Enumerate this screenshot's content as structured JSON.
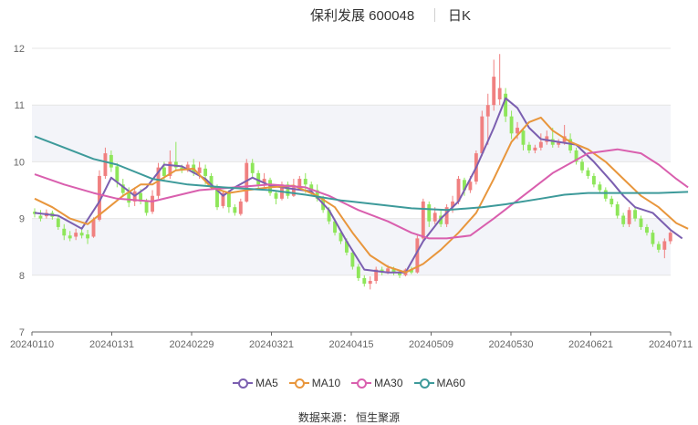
{
  "header": {
    "title": "保利发展 600048",
    "period": "日K"
  },
  "source": {
    "label": "数据来源：",
    "name": "恒生聚源"
  },
  "colors": {
    "up": "#f08080",
    "down": "#8ee65a",
    "band": "#f3f4f9",
    "grid": "#e6e6e6",
    "axis": "#666666"
  },
  "chart_data": {
    "type": "candlestick",
    "title": "保利发展 600048",
    "period": "日K",
    "ylim": [
      7,
      12
    ],
    "yticks": [
      7,
      8,
      9,
      10,
      11,
      12
    ],
    "x_ticks": [
      "20240110",
      "20240131",
      "20240229",
      "20240321",
      "20240415",
      "20240509",
      "20240530",
      "20240621",
      "20240711"
    ],
    "legend_position": "bottom",
    "candles": [
      [
        9.12,
        9.08,
        9.18,
        9.02
      ],
      [
        9.05,
        9.0,
        9.15,
        8.95
      ],
      [
        9.04,
        9.1,
        9.16,
        9.0
      ],
      [
        9.1,
        9.03,
        9.14,
        8.98
      ],
      [
        9.0,
        8.85,
        9.05,
        8.8
      ],
      [
        8.82,
        8.7,
        8.9,
        8.62
      ],
      [
        8.7,
        8.65,
        8.78,
        8.6
      ],
      [
        8.68,
        8.75,
        8.82,
        8.62
      ],
      [
        8.75,
        8.7,
        8.85,
        8.65
      ],
      [
        8.72,
        8.65,
        8.8,
        8.55
      ],
      [
        8.68,
        8.98,
        9.02,
        8.66
      ],
      [
        8.98,
        9.75,
        9.85,
        8.95
      ],
      [
        9.75,
        10.15,
        10.25,
        9.7
      ],
      [
        10.12,
        9.9,
        10.2,
        9.82
      ],
      [
        9.92,
        9.65,
        9.98,
        9.55
      ],
      [
        9.6,
        9.45,
        9.7,
        9.38
      ],
      [
        9.45,
        9.28,
        9.55,
        9.2
      ],
      [
        9.3,
        9.48,
        9.55,
        9.22
      ],
      [
        9.45,
        9.3,
        9.52,
        9.25
      ],
      [
        9.3,
        9.1,
        9.35,
        9.05
      ],
      [
        9.12,
        9.4,
        9.5,
        9.08
      ],
      [
        9.4,
        9.9,
        9.98,
        9.35
      ],
      [
        9.9,
        9.75,
        10.0,
        9.65
      ],
      [
        9.75,
        10.0,
        10.2,
        9.7
      ],
      [
        10.0,
        9.9,
        10.35,
        9.85
      ],
      [
        9.9,
        9.85,
        9.95,
        9.8
      ],
      [
        9.85,
        9.95,
        10.0,
        9.82
      ],
      [
        9.95,
        9.8,
        10.05,
        9.75
      ],
      [
        9.8,
        9.9,
        10.0,
        9.7
      ],
      [
        9.88,
        9.75,
        9.95,
        9.6
      ],
      [
        9.75,
        9.55,
        9.8,
        9.5
      ],
      [
        9.55,
        9.2,
        9.6,
        9.15
      ],
      [
        9.22,
        9.45,
        9.5,
        9.18
      ],
      [
        9.45,
        9.2,
        9.5,
        9.1
      ],
      [
        9.2,
        9.1,
        9.25,
        9.05
      ],
      [
        9.08,
        9.3,
        9.35,
        9.05
      ],
      [
        9.3,
        9.98,
        10.05,
        9.28
      ],
      [
        9.98,
        9.8,
        10.05,
        9.7
      ],
      [
        9.8,
        9.6,
        9.85,
        9.5
      ],
      [
        9.62,
        9.7,
        9.8,
        9.55
      ],
      [
        9.68,
        9.45,
        9.72,
        9.4
      ],
      [
        9.45,
        9.35,
        9.5,
        9.25
      ],
      [
        9.35,
        9.6,
        9.65,
        9.32
      ],
      [
        9.6,
        9.4,
        9.65,
        9.35
      ],
      [
        9.4,
        9.55,
        9.7,
        9.38
      ],
      [
        9.55,
        9.7,
        9.75,
        9.5
      ],
      [
        9.7,
        9.6,
        9.8,
        9.45
      ],
      [
        9.6,
        9.5,
        9.65,
        9.4
      ],
      [
        9.5,
        9.35,
        9.6,
        9.3
      ],
      [
        9.35,
        9.15,
        9.4,
        9.1
      ],
      [
        9.15,
        8.95,
        9.2,
        8.9
      ],
      [
        8.95,
        8.75,
        9.0,
        8.7
      ],
      [
        8.75,
        8.6,
        8.8,
        8.55
      ],
      [
        8.6,
        8.4,
        8.65,
        8.35
      ],
      [
        8.4,
        8.15,
        8.45,
        8.1
      ],
      [
        8.15,
        7.95,
        8.2,
        7.9
      ],
      [
        7.95,
        7.85,
        8.0,
        7.8
      ],
      [
        7.85,
        7.9,
        7.98,
        7.75
      ],
      [
        7.9,
        8.1,
        8.15,
        7.85
      ],
      [
        8.1,
        8.05,
        8.15,
        8.0
      ],
      [
        8.05,
        8.12,
        8.18,
        8.02
      ],
      [
        8.12,
        8.05,
        8.15,
        8.0
      ],
      [
        8.05,
        8.0,
        8.1,
        7.95
      ],
      [
        8.0,
        8.1,
        8.12,
        7.98
      ],
      [
        8.1,
        8.05,
        8.15,
        8.02
      ],
      [
        8.05,
        8.65,
        8.7,
        8.03
      ],
      [
        8.65,
        9.3,
        9.35,
        8.6
      ],
      [
        9.25,
        8.95,
        9.3,
        8.85
      ],
      [
        8.95,
        9.1,
        9.2,
        8.9
      ],
      [
        9.05,
        8.9,
        9.15,
        8.85
      ],
      [
        8.9,
        9.2,
        9.25,
        8.85
      ],
      [
        9.2,
        9.3,
        9.4,
        9.1
      ],
      [
        9.3,
        9.7,
        9.75,
        9.25
      ],
      [
        9.68,
        9.5,
        9.72,
        9.4
      ],
      [
        9.5,
        9.65,
        9.75,
        9.45
      ],
      [
        9.65,
        10.15,
        10.2,
        9.6
      ],
      [
        10.15,
        10.8,
        10.9,
        10.1
      ],
      [
        10.8,
        11.0,
        11.2,
        10.3
      ],
      [
        11.0,
        11.5,
        11.8,
        10.9
      ],
      [
        11.1,
        11.3,
        11.9,
        11.0
      ],
      [
        11.2,
        10.8,
        11.3,
        10.7
      ],
      [
        10.8,
        10.5,
        10.9,
        10.4
      ],
      [
        10.5,
        10.6,
        10.7,
        10.4
      ],
      [
        10.55,
        10.3,
        10.6,
        10.2
      ],
      [
        10.3,
        10.2,
        10.35,
        10.15
      ],
      [
        10.2,
        10.25,
        10.3,
        10.15
      ],
      [
        10.25,
        10.35,
        10.5,
        10.2
      ],
      [
        10.35,
        10.45,
        10.55,
        10.3
      ],
      [
        10.4,
        10.3,
        10.6,
        10.25
      ],
      [
        10.3,
        10.35,
        10.4,
        10.25
      ],
      [
        10.35,
        10.45,
        10.65,
        10.3
      ],
      [
        10.4,
        10.2,
        10.5,
        10.15
      ],
      [
        10.2,
        10.0,
        10.25,
        9.95
      ],
      [
        10.0,
        9.85,
        10.05,
        9.8
      ],
      [
        9.85,
        9.75,
        9.9,
        9.7
      ],
      [
        9.75,
        9.6,
        9.8,
        9.55
      ],
      [
        9.6,
        9.5,
        9.65,
        9.45
      ],
      [
        9.5,
        9.35,
        9.55,
        9.3
      ],
      [
        9.35,
        9.25,
        9.4,
        9.2
      ],
      [
        9.25,
        9.05,
        9.3,
        9.0
      ],
      [
        9.05,
        8.9,
        9.1,
        8.85
      ],
      [
        8.9,
        9.15,
        9.2,
        8.85
      ],
      [
        9.15,
        9.0,
        9.2,
        8.95
      ],
      [
        9.0,
        8.85,
        9.05,
        8.8
      ],
      [
        8.85,
        8.75,
        8.9,
        8.7
      ],
      [
        8.75,
        8.55,
        8.8,
        8.5
      ],
      [
        8.55,
        8.45,
        8.6,
        8.4
      ],
      [
        8.45,
        8.6,
        8.65,
        8.3
      ],
      [
        8.6,
        8.75,
        8.78,
        8.55
      ]
    ],
    "series": [
      {
        "name": "MA5",
        "color": "#7b5fb0",
        "points": [
          [
            0,
            9.1
          ],
          [
            4,
            9.05
          ],
          [
            8,
            8.82
          ],
          [
            11,
            9.3
          ],
          [
            13,
            9.72
          ],
          [
            17,
            9.4
          ],
          [
            19,
            9.55
          ],
          [
            22,
            9.95
          ],
          [
            25,
            9.92
          ],
          [
            29,
            9.7
          ],
          [
            32,
            9.4
          ],
          [
            34,
            9.55
          ],
          [
            37,
            9.72
          ],
          [
            40,
            9.58
          ],
          [
            44,
            9.52
          ],
          [
            47,
            9.48
          ],
          [
            50,
            9.15
          ],
          [
            53,
            8.6
          ],
          [
            56,
            8.1
          ],
          [
            60,
            8.05
          ],
          [
            63,
            8.05
          ],
          [
            66,
            8.6
          ],
          [
            69,
            9.0
          ],
          [
            72,
            9.3
          ],
          [
            75,
            9.9
          ],
          [
            78,
            10.6
          ],
          [
            80,
            11.12
          ],
          [
            82,
            10.95
          ],
          [
            84,
            10.6
          ],
          [
            86,
            10.4
          ],
          [
            89,
            10.35
          ],
          [
            92,
            10.3
          ],
          [
            95,
            10.0
          ],
          [
            98,
            9.65
          ],
          [
            100,
            9.4
          ],
          [
            102,
            9.2
          ],
          [
            105,
            9.1
          ],
          [
            108,
            8.8
          ],
          [
            110,
            8.65
          ]
        ]
      },
      {
        "name": "MA10",
        "color": "#e8963c",
        "points": [
          [
            0,
            9.35
          ],
          [
            3,
            9.2
          ],
          [
            6,
            9.0
          ],
          [
            9,
            8.9
          ],
          [
            12,
            9.15
          ],
          [
            15,
            9.4
          ],
          [
            18,
            9.6
          ],
          [
            20,
            9.6
          ],
          [
            24,
            9.85
          ],
          [
            27,
            9.88
          ],
          [
            30,
            9.55
          ],
          [
            33,
            9.45
          ],
          [
            36,
            9.5
          ],
          [
            40,
            9.55
          ],
          [
            44,
            9.58
          ],
          [
            48,
            9.4
          ],
          [
            51,
            9.2
          ],
          [
            54,
            8.75
          ],
          [
            57,
            8.35
          ],
          [
            60,
            8.15
          ],
          [
            63,
            8.05
          ],
          [
            66,
            8.2
          ],
          [
            69,
            8.45
          ],
          [
            72,
            8.75
          ],
          [
            75,
            9.1
          ],
          [
            78,
            9.7
          ],
          [
            81,
            10.35
          ],
          [
            84,
            10.7
          ],
          [
            86,
            10.78
          ],
          [
            88,
            10.55
          ],
          [
            91,
            10.35
          ],
          [
            94,
            10.22
          ],
          [
            97,
            10.0
          ],
          [
            100,
            9.7
          ],
          [
            103,
            9.4
          ],
          [
            106,
            9.2
          ],
          [
            109,
            8.92
          ],
          [
            111,
            8.82
          ]
        ]
      },
      {
        "name": "MA30",
        "color": "#d95fae",
        "points": [
          [
            0,
            9.78
          ],
          [
            5,
            9.6
          ],
          [
            10,
            9.45
          ],
          [
            14,
            9.35
          ],
          [
            20,
            9.3
          ],
          [
            28,
            9.5
          ],
          [
            34,
            9.55
          ],
          [
            40,
            9.6
          ],
          [
            46,
            9.55
          ],
          [
            50,
            9.4
          ],
          [
            55,
            9.15
          ],
          [
            60,
            8.95
          ],
          [
            64,
            8.75
          ],
          [
            67,
            8.65
          ],
          [
            70,
            8.65
          ],
          [
            74,
            8.7
          ],
          [
            78,
            9.0
          ],
          [
            83,
            9.4
          ],
          [
            88,
            9.8
          ],
          [
            94,
            10.15
          ],
          [
            99,
            10.22
          ],
          [
            103,
            10.15
          ],
          [
            106,
            9.95
          ],
          [
            109,
            9.7
          ],
          [
            111,
            9.55
          ]
        ]
      },
      {
        "name": "MA60",
        "color": "#3d9a9a",
        "points": [
          [
            0,
            10.45
          ],
          [
            5,
            10.25
          ],
          [
            10,
            10.05
          ],
          [
            14,
            9.95
          ],
          [
            20,
            9.7
          ],
          [
            26,
            9.6
          ],
          [
            32,
            9.55
          ],
          [
            40,
            9.5
          ],
          [
            46,
            9.42
          ],
          [
            52,
            9.32
          ],
          [
            58,
            9.25
          ],
          [
            64,
            9.18
          ],
          [
            70,
            9.15
          ],
          [
            76,
            9.2
          ],
          [
            80,
            9.25
          ],
          [
            86,
            9.35
          ],
          [
            90,
            9.42
          ],
          [
            94,
            9.45
          ],
          [
            100,
            9.45
          ],
          [
            106,
            9.45
          ],
          [
            111,
            9.47
          ]
        ]
      }
    ]
  }
}
